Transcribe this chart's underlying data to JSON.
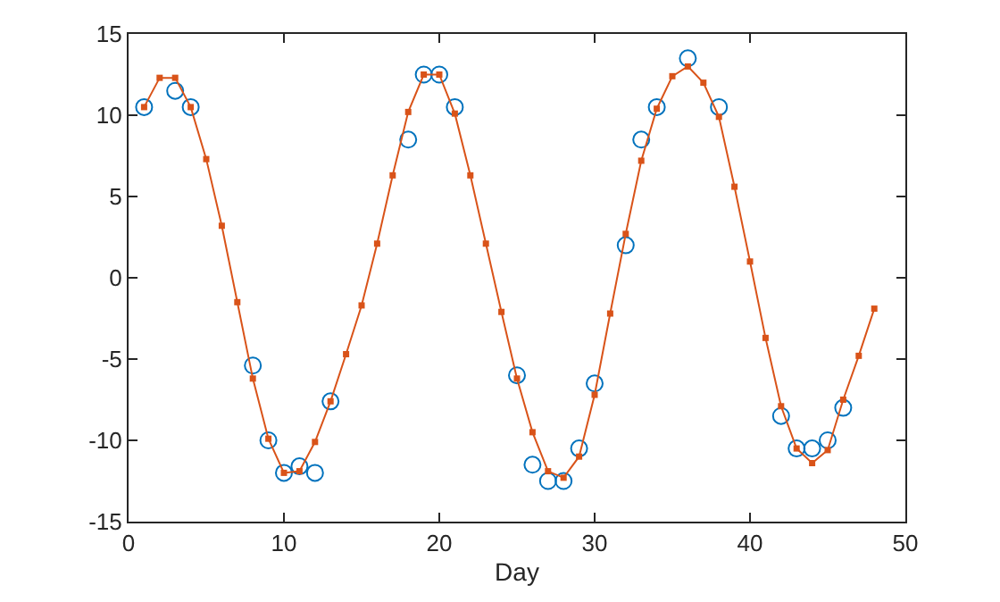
{
  "chart_data": {
    "type": "scatter",
    "xlabel": "Day",
    "xlim": [
      0,
      50
    ],
    "xticks": [
      0,
      10,
      20,
      30,
      40,
      50
    ],
    "ylim": [
      -15,
      15
    ],
    "yticks": [
      -15,
      -10,
      -5,
      0,
      5,
      10,
      15
    ],
    "series": [
      {
        "marker": "circle",
        "color": "#0072bd",
        "x": [
          1,
          3,
          4,
          8,
          9,
          10,
          11,
          12,
          13,
          18,
          19,
          20,
          21,
          25,
          26,
          27,
          28,
          29,
          30,
          32,
          33,
          34,
          36,
          38,
          42,
          43,
          44,
          45,
          46
        ],
        "values": [
          10.5,
          11.5,
          10.5,
          -5.4,
          -10,
          -12,
          -11.6,
          -12,
          -7.6,
          8.5,
          12.5,
          12.5,
          10.5,
          -6,
          -11.5,
          -12.5,
          -12.5,
          -10.5,
          -6.5,
          2,
          8.5,
          10.5,
          13.5,
          10.5,
          -8.5,
          -10.5,
          -10.5,
          -10,
          -8
        ]
      },
      {
        "type": "line",
        "marker": "square",
        "line_style": "solid",
        "color": "#d95319",
        "x": [
          1,
          2,
          3,
          4,
          5,
          6,
          7,
          8,
          9,
          10,
          11,
          12,
          13,
          14,
          15,
          16,
          17,
          18,
          19,
          20,
          21,
          22,
          23,
          24,
          25,
          26,
          27,
          28,
          29,
          30,
          31,
          32,
          33,
          34,
          35,
          36,
          37,
          38,
          39,
          40,
          41,
          42,
          43,
          44,
          45,
          46,
          47,
          48
        ],
        "values": [
          10.5,
          12.3,
          12.3,
          10.5,
          7.3,
          3.2,
          -1.5,
          -6.2,
          -9.9,
          -12.0,
          -11.9,
          -10.1,
          -7.6,
          -4.7,
          -1.7,
          2.1,
          6.3,
          10.2,
          12.5,
          12.5,
          10.1,
          6.3,
          2.1,
          -2.1,
          -6.2,
          -9.5,
          -11.9,
          -12.3,
          -11.0,
          -7.2,
          -2.2,
          2.7,
          7.2,
          10.4,
          12.4,
          13.0,
          12.0,
          9.9,
          5.6,
          1.0,
          -3.7,
          -7.9,
          -10.5,
          -11.4,
          -10.6,
          -7.5,
          -4.8,
          -1.9
        ]
      }
    ]
  }
}
